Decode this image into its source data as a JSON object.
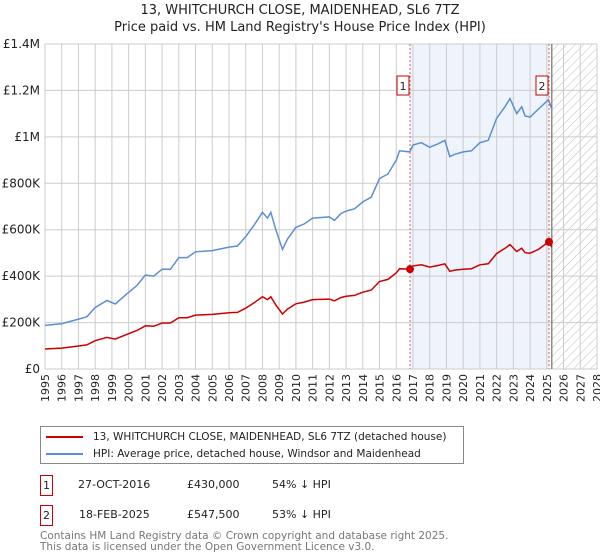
{
  "title_line1": "13, WHITCHURCH CLOSE, MAIDENHEAD, SL6 7TZ",
  "title_line2": "Price paid vs. HM Land Registry's House Price Index (HPI)",
  "chart_data": {
    "type": "line",
    "title": "13, WHITCHURCH CLOSE, MAIDENHEAD, SL6 7TZ - Price paid vs. HM Land Registry's House Price Index (HPI)",
    "xlabel": "",
    "ylabel": "",
    "xlim": [
      1995,
      2028
    ],
    "ylim": [
      0,
      1400000
    ],
    "grid": true,
    "legend_placement": "below",
    "y_ticks": [
      0,
      200000,
      400000,
      600000,
      800000,
      1000000,
      1200000,
      1400000
    ],
    "y_tick_labels": [
      "£0",
      "£200K",
      "£400K",
      "£600K",
      "£800K",
      "£1M",
      "£1.2M",
      "£1.4M"
    ],
    "x_ticks": [
      1995,
      1996,
      1997,
      1998,
      1999,
      2000,
      2001,
      2002,
      2003,
      2004,
      2005,
      2006,
      2007,
      2008,
      2009,
      2010,
      2011,
      2012,
      2013,
      2014,
      2015,
      2016,
      2017,
      2018,
      2019,
      2020,
      2021,
      2022,
      2023,
      2024,
      2025,
      2026,
      2027,
      2028
    ],
    "x": [
      1995,
      1996,
      1997,
      1997.5,
      1998,
      1998.7,
      1999.2,
      2000,
      2000.5,
      2001,
      2001.5,
      2002,
      2002.5,
      2003,
      2003.5,
      2004,
      2005,
      2006,
      2006.5,
      2007,
      2007.5,
      2008,
      2008.3,
      2008.5,
      2008.8,
      2009.2,
      2009.5,
      2010,
      2010.5,
      2011,
      2012,
      2012.3,
      2012.7,
      2013,
      2013.5,
      2014,
      2014.5,
      2015,
      2015.5,
      2016,
      2016.2,
      2016.8,
      2017,
      2017.5,
      2018,
      2018.5,
      2018.9,
      2019.2,
      2019.5,
      2020,
      2020.5,
      2021,
      2021.5,
      2022,
      2022.5,
      2022.8,
      2023.2,
      2023.5,
      2023.7,
      2024,
      2024.5,
      2025.1,
      2025.3
    ],
    "series": [
      {
        "name": "13, WHITCHURCH CLOSE, MAIDENHEAD, SL6 7TZ (detached house)",
        "color": "#cc0000",
        "values": [
          86000,
          90000,
          99000,
          104000,
          122000,
          136000,
          129000,
          152000,
          166000,
          186000,
          184000,
          198000,
          198000,
          221000,
          221000,
          232000,
          235000,
          242000,
          244000,
          262000,
          285000,
          311000,
          299000,
          311000,
          276000,
          237000,
          258000,
          281000,
          288000,
          299000,
          301000,
          294000,
          308000,
          313000,
          317000,
          331000,
          340000,
          377000,
          386000,
          414000,
          432000,
          430000,
          444000,
          449000,
          439000,
          446000,
          453000,
          421000,
          426000,
          430000,
          432000,
          449000,
          453000,
          497000,
          520000,
          536000,
          506000,
          520000,
          501000,
          499000,
          515000,
          547000,
          525000
        ]
      },
      {
        "name": "HPI: Average price, detached house, Windsor and Maidenhead",
        "color": "#5b8fd4",
        "values": [
          188000,
          195000,
          215000,
          225000,
          265000,
          295000,
          280000,
          330000,
          360000,
          405000,
          400000,
          430000,
          430000,
          480000,
          480000,
          505000,
          510000,
          525000,
          530000,
          570000,
          620000,
          675000,
          650000,
          675000,
          600000,
          515000,
          560000,
          610000,
          625000,
          650000,
          655000,
          640000,
          670000,
          680000,
          690000,
          720000,
          740000,
          820000,
          840000,
          900000,
          940000,
          935000,
          965000,
          975000,
          955000,
          970000,
          985000,
          915000,
          925000,
          935000,
          940000,
          975000,
          985000,
          1080000,
          1130000,
          1165000,
          1100000,
          1130000,
          1090000,
          1085000,
          1120000,
          1160000,
          1120000
        ]
      }
    ],
    "sales": [
      {
        "label": "1",
        "x": 2016.82,
        "value": 430000
      },
      {
        "label": "2",
        "x": 2025.13,
        "value": 547500
      }
    ],
    "shaded_range": [
      2016.82,
      2025.13
    ],
    "forecast_hatch_from": 2025.3
  },
  "legend": {
    "property_label": "13, WHITCHURCH CLOSE, MAIDENHEAD, SL6 7TZ (detached house)",
    "hpi_label": "HPI: Average price, detached house, Windsor and Maidenhead"
  },
  "transactions": [
    {
      "num": "1",
      "date": "27-OCT-2016",
      "price": "£430,000",
      "hpi": "54% ↓ HPI"
    },
    {
      "num": "2",
      "date": "18-FEB-2025",
      "price": "£547,500",
      "hpi": "53% ↓ HPI"
    }
  ],
  "footer_line1": "Contains HM Land Registry data © Crown copyright and database right 2025.",
  "footer_line2": "This data is licensed under the Open Government Licence v3.0."
}
